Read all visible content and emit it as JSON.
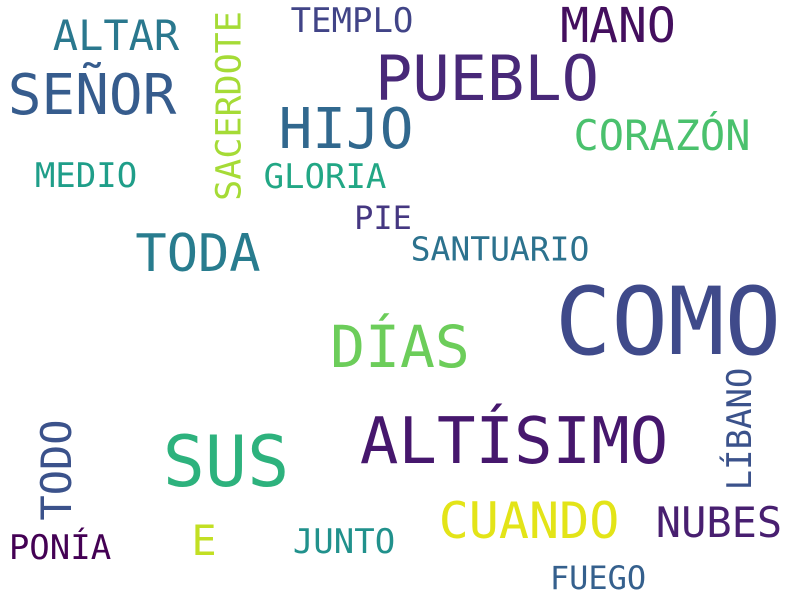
{
  "words": [
    {
      "text": "COMO",
      "color": "#3f4a8a",
      "vertical": false
    },
    {
      "text": "PUEBLO",
      "color": "#482878",
      "vertical": false
    },
    {
      "text": "SEÑOR",
      "color": "#365c8d",
      "vertical": false
    },
    {
      "text": "ALTÍSIMO",
      "color": "#46176d",
      "vertical": false
    },
    {
      "text": "SUS",
      "color": "#2db27d",
      "vertical": false
    },
    {
      "text": "DÍAS",
      "color": "#6ccd5a",
      "vertical": false
    },
    {
      "text": "HIJO",
      "color": "#31688e",
      "vertical": false
    },
    {
      "text": "MANO",
      "color": "#440f5e",
      "vertical": false
    },
    {
      "text": "TODA",
      "color": "#287c8e",
      "vertical": false
    },
    {
      "text": "CUANDO",
      "color": "#e3e418",
      "vertical": false
    },
    {
      "text": "CORAZÓN",
      "color": "#4ac16d",
      "vertical": false
    },
    {
      "text": "ALTAR",
      "color": "#2a788e",
      "vertical": false
    },
    {
      "text": "NUBES",
      "color": "#481f70",
      "vertical": false
    },
    {
      "text": "TODO",
      "color": "#3b528b",
      "vertical": true
    },
    {
      "text": "SACERDOTE",
      "color": "#a5db36",
      "vertical": true
    },
    {
      "text": "LÍBANO",
      "color": "#3b528b",
      "vertical": true
    },
    {
      "text": "SANTUARIO",
      "color": "#2c728e",
      "vertical": false
    },
    {
      "text": "MEDIO",
      "color": "#1f9e89",
      "vertical": false
    },
    {
      "text": "GLORIA",
      "color": "#22a785",
      "vertical": false
    },
    {
      "text": "TEMPLO",
      "color": "#414487",
      "vertical": false
    },
    {
      "text": "PIE",
      "color": "#453781",
      "vertical": false
    },
    {
      "text": "PONÍA",
      "color": "#440154",
      "vertical": false
    },
    {
      "text": "E",
      "color": "#c2df23",
      "vertical": false
    },
    {
      "text": "JUNTO",
      "color": "#21918c",
      "vertical": false
    },
    {
      "text": "FUEGO",
      "color": "#35608d",
      "vertical": false
    }
  ]
}
